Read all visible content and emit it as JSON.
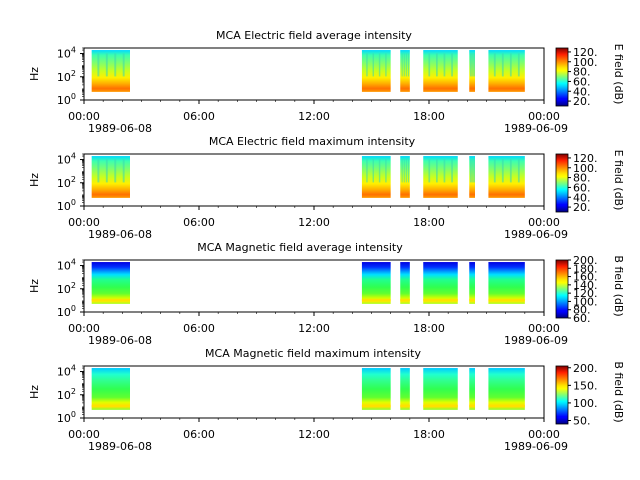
{
  "chart_data": [
    {
      "type": "heatmap",
      "title": "MCA  Electric field average intensity",
      "ylabel": "Hz",
      "yscale": "log",
      "y_ticks": [
        "10^0",
        "10^2",
        "10^4"
      ],
      "x_ticks": [
        "00:00",
        "06:00",
        "12:00",
        "18:00",
        "00:00"
      ],
      "x_date_labels": [
        "1989-06-08",
        "1989-06-09"
      ],
      "colorbar_label": "E field (dB)",
      "colorbar_ticks": [
        "20.",
        "40.",
        "60.",
        "80.",
        "100.",
        "120."
      ],
      "colorbar_range": [
        10,
        128
      ],
      "time_range_hours": [
        0,
        24
      ],
      "freq_range_hz": [
        1,
        30000
      ],
      "data_intervals_hours": [
        [
          0.4,
          2.4
        ],
        [
          14.5,
          16.0
        ],
        [
          16.5,
          17.0
        ],
        [
          17.7,
          19.5
        ],
        [
          20.1,
          20.4
        ],
        [
          21.1,
          23.0
        ]
      ],
      "freq_band_hz": [
        5,
        20000
      ],
      "colormap": "jet"
    },
    {
      "type": "heatmap",
      "title": "MCA  Electric field maximum intensity",
      "ylabel": "Hz",
      "yscale": "log",
      "y_ticks": [
        "10^0",
        "10^2",
        "10^4"
      ],
      "x_ticks": [
        "00:00",
        "06:00",
        "12:00",
        "18:00",
        "00:00"
      ],
      "x_date_labels": [
        "1989-06-08",
        "1989-06-09"
      ],
      "colorbar_label": "E field (dB)",
      "colorbar_ticks": [
        "20.",
        "40.",
        "60.",
        "80.",
        "100.",
        "120."
      ],
      "colorbar_range": [
        10,
        128
      ],
      "time_range_hours": [
        0,
        24
      ],
      "freq_range_hz": [
        1,
        30000
      ],
      "data_intervals_hours": [
        [
          0.4,
          2.4
        ],
        [
          14.5,
          16.0
        ],
        [
          16.5,
          17.0
        ],
        [
          17.7,
          19.5
        ],
        [
          20.1,
          20.4
        ],
        [
          21.1,
          23.0
        ]
      ],
      "freq_band_hz": [
        5,
        20000
      ],
      "colormap": "jet"
    },
    {
      "type": "heatmap",
      "title": "MCA  Magnetic field average intensity",
      "ylabel": "Hz",
      "yscale": "log",
      "y_ticks": [
        "10^0",
        "10^2",
        "10^4"
      ],
      "x_ticks": [
        "00:00",
        "06:00",
        "12:00",
        "18:00",
        "00:00"
      ],
      "x_date_labels": [
        "1989-06-08",
        "1989-06-09"
      ],
      "colorbar_label": "B field (dB)",
      "colorbar_ticks": [
        "60.",
        "80.",
        "100.",
        "120.",
        "140.",
        "160.",
        "180.",
        "200."
      ],
      "colorbar_range": [
        60,
        200
      ],
      "time_range_hours": [
        0,
        24
      ],
      "freq_range_hz": [
        1,
        30000
      ],
      "data_intervals_hours": [
        [
          0.4,
          2.4
        ],
        [
          14.5,
          16.0
        ],
        [
          16.5,
          17.0
        ],
        [
          17.7,
          19.5
        ],
        [
          20.1,
          20.4
        ],
        [
          21.1,
          23.0
        ]
      ],
      "freq_band_hz": [
        5,
        20000
      ],
      "colormap": "jet"
    },
    {
      "type": "heatmap",
      "title": "MCA  Magnetic field maximum intensity",
      "ylabel": "Hz",
      "yscale": "log",
      "y_ticks": [
        "10^0",
        "10^2",
        "10^4"
      ],
      "x_ticks": [
        "00:00",
        "06:00",
        "12:00",
        "18:00",
        "00:00"
      ],
      "x_date_labels": [
        "1989-06-08",
        "1989-06-09"
      ],
      "colorbar_label": "B field (dB)",
      "colorbar_ticks": [
        "50.",
        "100.",
        "150.",
        "200."
      ],
      "colorbar_range": [
        40,
        205
      ],
      "time_range_hours": [
        0,
        24
      ],
      "freq_range_hz": [
        1,
        30000
      ],
      "data_intervals_hours": [
        [
          0.4,
          2.4
        ],
        [
          14.5,
          16.0
        ],
        [
          16.5,
          17.0
        ],
        [
          17.7,
          19.5
        ],
        [
          20.1,
          20.4
        ],
        [
          21.1,
          23.0
        ]
      ],
      "freq_band_hz": [
        5,
        20000
      ],
      "colormap": "jet"
    }
  ]
}
